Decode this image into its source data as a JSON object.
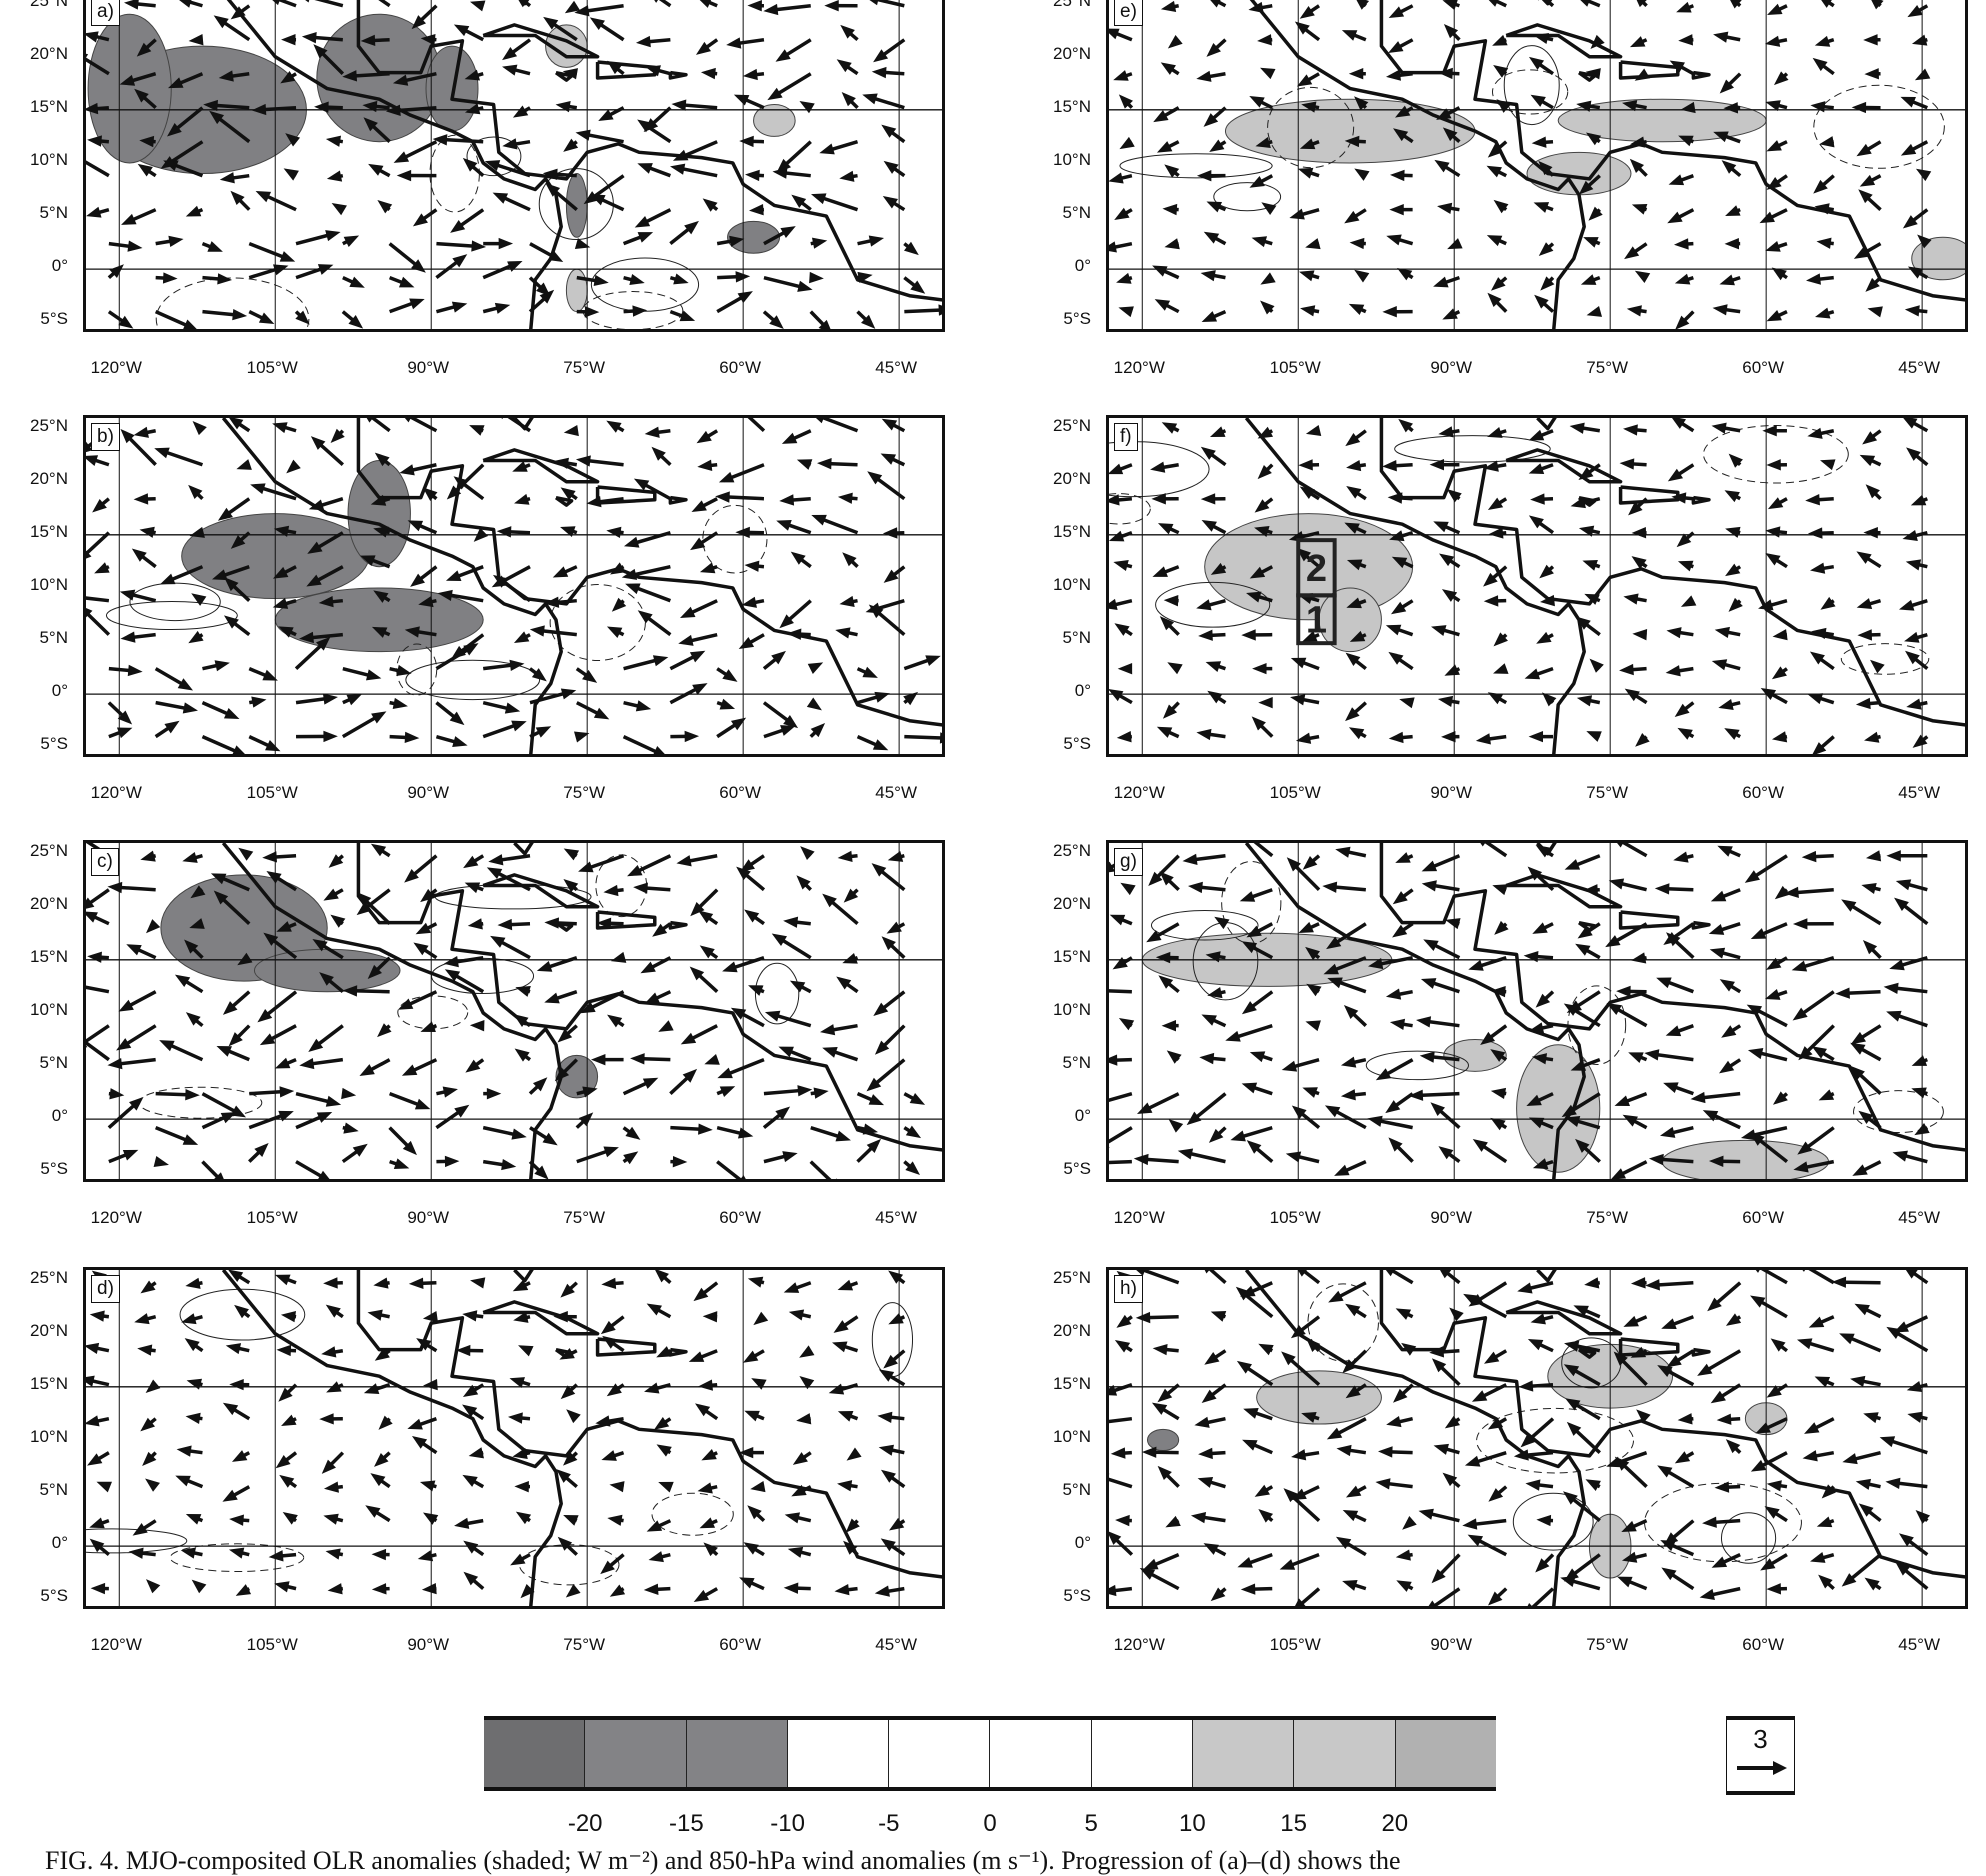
{
  "panels": [
    {
      "label": "a)"
    },
    {
      "label": "b)"
    },
    {
      "label": "c)"
    },
    {
      "label": "d)"
    },
    {
      "label": "e)"
    },
    {
      "label": "f)"
    },
    {
      "label": "g)"
    },
    {
      "label": "h)"
    }
  ],
  "lat_ticks": [
    "25°N",
    "20°N",
    "15°N",
    "10°N",
    "5°N",
    "0°",
    "5°S"
  ],
  "lon_ticks": [
    "120°W",
    "105°W",
    "90°W",
    "75°W",
    "60°W",
    "45°W"
  ],
  "panel_f_boxes": [
    "1",
    "2"
  ],
  "colorbar": {
    "labels": [
      "-20",
      "-15",
      "-10",
      "-5",
      "0",
      "5",
      "10",
      "15",
      "20"
    ],
    "colors": [
      "#6e6e70",
      "#838386",
      "#838386",
      "#ffffff",
      "#ffffff",
      "#ffffff",
      "#ffffff",
      "#c8c8c8",
      "#c8c8c8",
      "#b1b1b1"
    ]
  },
  "reference_vector": {
    "value": "3"
  },
  "caption": "FIG. 4. MJO-composited OLR anomalies (shaded; W m⁻²) and 850-hPa wind anomalies (m s⁻¹). Progression of (a)–(d) shows the"
}
